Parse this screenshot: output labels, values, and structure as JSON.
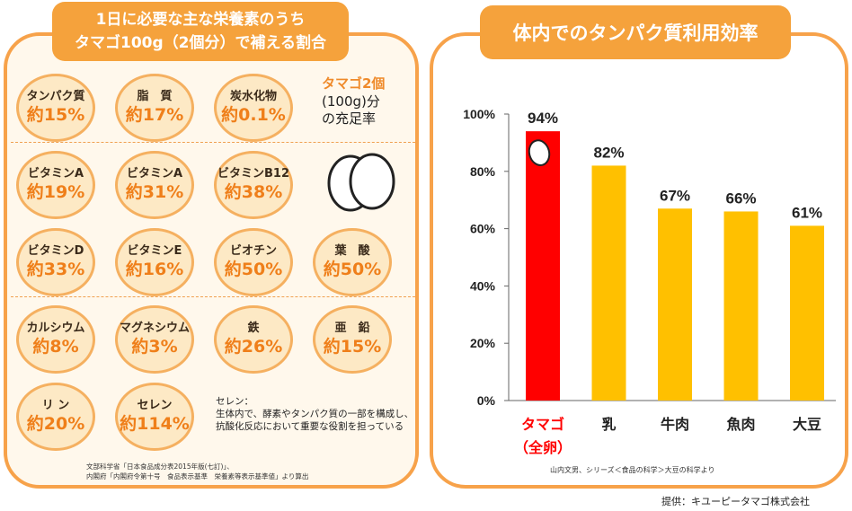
{
  "left": {
    "title_line1": "1日に必要な主な栄養素のうち",
    "title_line2": "タマゴ100g（2個分）で補える割合",
    "note_title": "タマゴ2個",
    "note_line1": "(100g)分",
    "note_line2": "の充足率",
    "nutrients": [
      {
        "name": "タンパク質",
        "value": "約15%"
      },
      {
        "name": "脂　質",
        "value": "約17%"
      },
      {
        "name": "炭水化物",
        "value": "約0.1%"
      },
      {
        "name": "ビタミンA",
        "value": "約19%"
      },
      {
        "name": "ビタミンA",
        "value": "約31%"
      },
      {
        "name": "ビタミンB12",
        "value": "約38%"
      },
      {
        "name": "ビタミンD",
        "value": "約33%"
      },
      {
        "name": "ビタミンE",
        "value": "約16%"
      },
      {
        "name": "ビオチン",
        "value": "約50%"
      },
      {
        "name": "葉　酸",
        "value": "約50%"
      },
      {
        "name": "カルシウム",
        "value": "約8%"
      },
      {
        "name": "マグネシウム",
        "value": "約3%"
      },
      {
        "name": "鉄",
        "value": "約26%"
      },
      {
        "name": "亜　鉛",
        "value": "約15%"
      },
      {
        "name": "リ ン",
        "value": "約20%"
      },
      {
        "name": "セレン",
        "value": "約114%"
      }
    ],
    "selen_note_line1": "セレン：",
    "selen_note_line2": "生体内で、酵素やタンパク質の一部を構成し、",
    "selen_note_line3": "抗酸化反応において重要な役割を担っている",
    "source_line1": "文部科学省「日本食品成分表2015年版(七訂)」、",
    "source_line2": "内閣府「内閣府令第十号　食品表示基準　栄養素等表示基準値」より算出"
  },
  "right": {
    "source": "山内文男、シリーズ＜食品の科学＞大豆の科学より"
  },
  "credit": "提供：キユーピータマゴ株式会社",
  "colors": {
    "orange": "#f5a23c",
    "bar": "#ffc000",
    "highlight": "#ff0000",
    "value_text": "#ef7f1a"
  },
  "chart_data": {
    "type": "bar",
    "title": "体内でのタンパク質利用効率",
    "categories": [
      "タマゴ（全卵）",
      "乳",
      "牛肉",
      "魚肉",
      "大豆"
    ],
    "category_lines": [
      [
        "タマゴ",
        "（全卵）"
      ],
      [
        "乳"
      ],
      [
        "牛肉"
      ],
      [
        "魚肉"
      ],
      [
        "大豆"
      ]
    ],
    "values": [
      94,
      82,
      67,
      66,
      61
    ],
    "value_labels": [
      "94%",
      "82%",
      "67%",
      "66%",
      "61%"
    ],
    "highlight_index": 0,
    "yticks": [
      0,
      20,
      40,
      60,
      80,
      100
    ],
    "ytick_labels": [
      "0%",
      "20%",
      "40%",
      "60%",
      "80%",
      "100%"
    ],
    "ylim": [
      0,
      100
    ],
    "xlabel": "",
    "ylabel": "",
    "grid": false
  }
}
